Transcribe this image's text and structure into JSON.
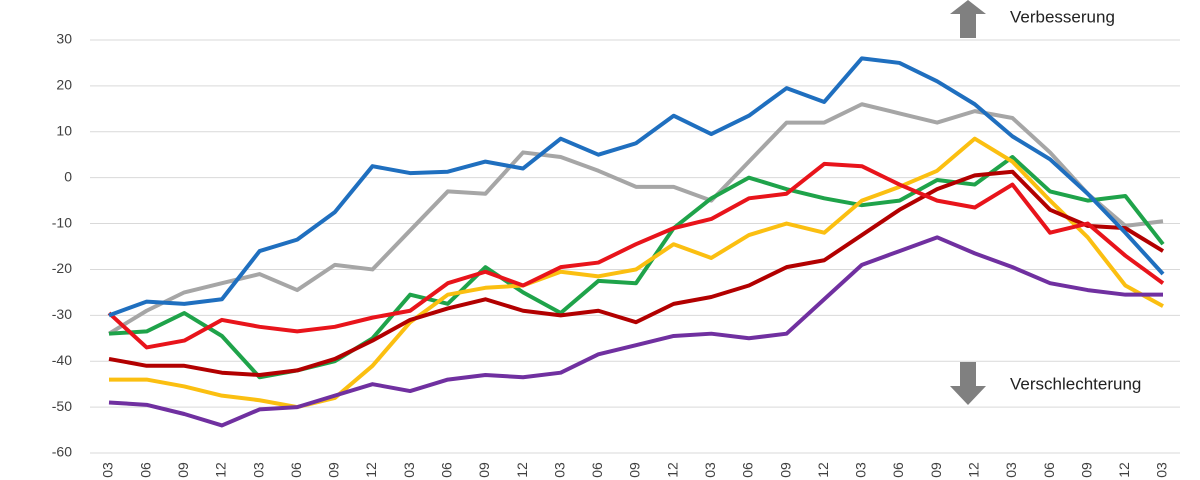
{
  "chart_data": {
    "type": "line",
    "annotations": [
      "Verbesserung",
      "Verschlechterung"
    ],
    "categories": [
      "03",
      "06",
      "09",
      "12",
      "03",
      "06",
      "09",
      "12",
      "03",
      "06",
      "09",
      "12",
      "03",
      "06",
      "09",
      "12",
      "03",
      "06",
      "09",
      "12",
      "03",
      "06",
      "09",
      "12",
      "03",
      "06",
      "09",
      "12",
      "03"
    ],
    "series": [
      {
        "color": "#a6a6a6",
        "values": [
          -34,
          -29,
          -25,
          -23,
          -21,
          -24.5,
          -19,
          -20,
          -11.5,
          -3,
          -3.5,
          5.5,
          4.5,
          1.5,
          -2,
          -2,
          -5,
          3.5,
          12,
          12,
          16,
          14,
          12,
          14.5,
          13,
          5.5,
          -3.5,
          -10.5,
          -9.5
        ]
      },
      {
        "color": "#1fa34a",
        "values": [
          -34,
          -33.5,
          -29.5,
          -34.5,
          -43.5,
          -42,
          -40,
          -35,
          -25.5,
          -27.5,
          -19.5,
          -25,
          -29.5,
          -22.5,
          -23,
          -11,
          -4.5,
          0,
          -2.5,
          -4.5,
          -6,
          -5,
          -0.5,
          -1.5,
          4.5,
          -3,
          -5,
          -4,
          -14.5
        ]
      },
      {
        "color": "#fbbf11",
        "values": [
          -44,
          -44,
          -45.5,
          -47.5,
          -48.5,
          -50,
          -48,
          -41,
          -31.5,
          -25.5,
          -24,
          -23.5,
          -20.5,
          -21.5,
          -20,
          -14.5,
          -17.5,
          -12.5,
          -10,
          -12,
          -5,
          -2,
          1.5,
          8.5,
          3.5,
          -5,
          -13,
          -23.5,
          -28
        ]
      },
      {
        "color": "#b20000",
        "values": [
          -39.5,
          -41,
          -41,
          -42.5,
          -43,
          -42,
          -39.5,
          -35.5,
          -31,
          -28.5,
          -26.5,
          -29,
          -30,
          -29,
          -31.5,
          -27.5,
          -26,
          -23.5,
          -19.5,
          -18,
          -12.5,
          -7,
          -2.5,
          0.5,
          1.3,
          -7,
          -10.5,
          -11,
          -16
        ]
      },
      {
        "color": "#7030a0",
        "values": [
          -49,
          -49.5,
          -51.5,
          -54,
          -50.5,
          -50,
          -47.5,
          -45,
          -46.5,
          -44,
          -43,
          -43.5,
          -42.5,
          -38.5,
          -36.5,
          -34.5,
          -34,
          -35,
          -34,
          -26.5,
          -19,
          -16,
          -13,
          -16.5,
          -19.5,
          -23,
          -24.5,
          -25.5,
          -25.5
        ]
      },
      {
        "color": "#e8141b",
        "values": [
          -29.5,
          -37,
          -35.5,
          -31,
          -32.5,
          -33.5,
          -32.5,
          -30.5,
          -29,
          -23,
          -20.5,
          -23.5,
          -19.5,
          -18.5,
          -14.5,
          -11,
          -9,
          -4.5,
          -3.5,
          3,
          2.5,
          -1.5,
          -5,
          -6.5,
          -1.5,
          -12,
          -10,
          -17,
          -23
        ]
      },
      {
        "color": "#1f6fbf",
        "values": [
          -30,
          -27,
          -27.5,
          -26.5,
          -16,
          -13.5,
          -7.5,
          2.5,
          1,
          1.3,
          3.5,
          2,
          8.5,
          5,
          7.5,
          13.5,
          9.5,
          13.5,
          19.5,
          16.5,
          26,
          25,
          21,
          16,
          9,
          4,
          -3.5,
          -12,
          -21
        ]
      }
    ],
    "ylim": [
      -60,
      30
    ],
    "yticks": [
      30,
      20,
      10,
      0,
      -10,
      -20,
      -30,
      -40,
      -50,
      -60
    ],
    "grid": true
  }
}
